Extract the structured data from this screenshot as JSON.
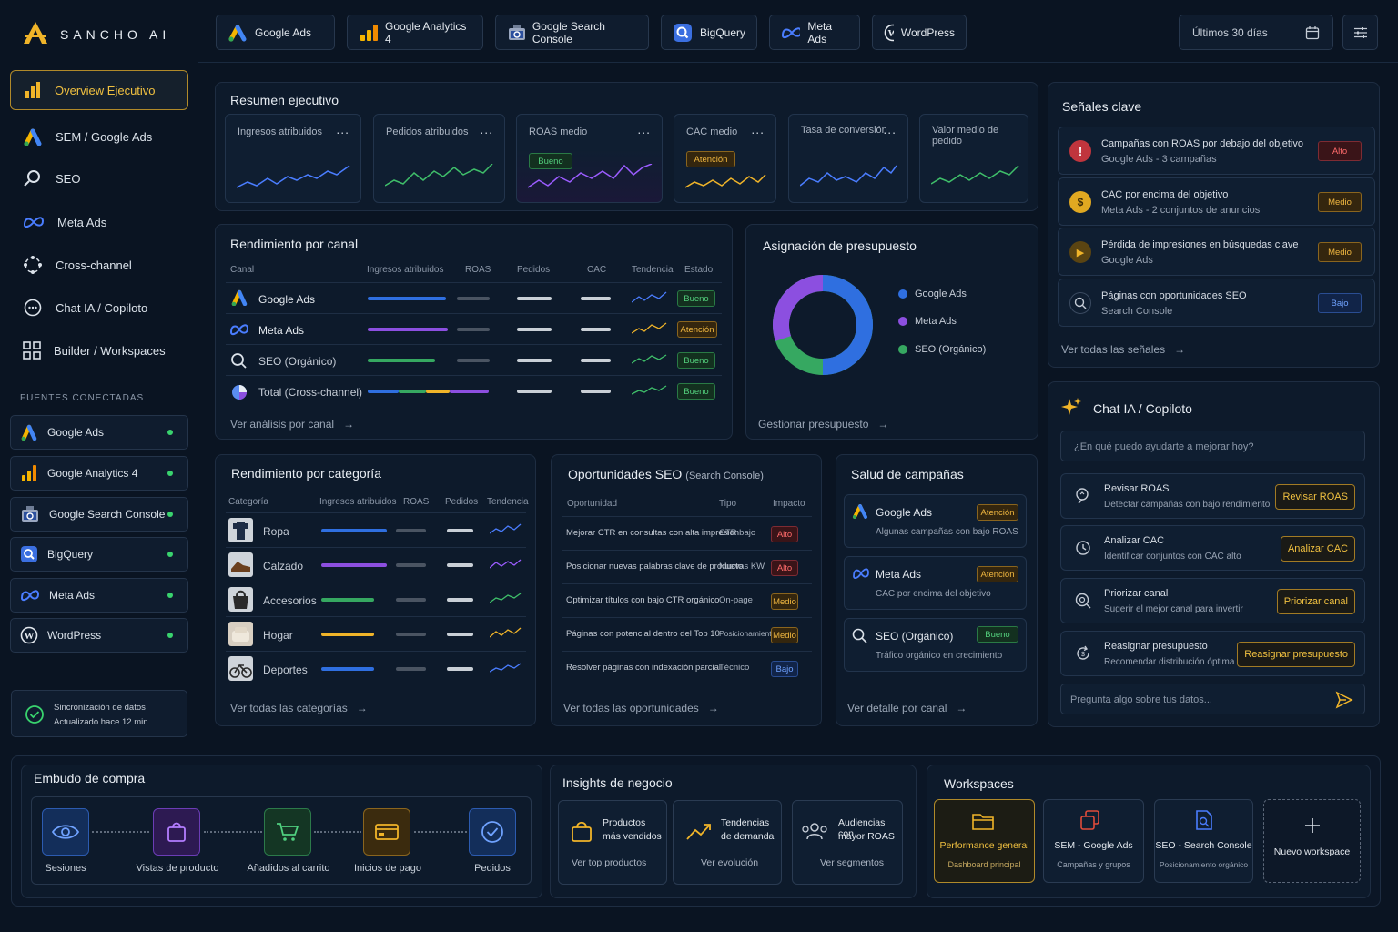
{
  "brand": {
    "name": "SANCHO AI"
  },
  "top_tabs": [
    "Google Ads",
    "Google Analytics 4",
    "Google Search Console",
    "BigQuery",
    "Meta Ads",
    "WordPress"
  ],
  "date_range": "Últimos 30 días",
  "sidebar": {
    "items": [
      "Overview Ejecutivo",
      "SEM / Google Ads",
      "SEO",
      "Meta Ads",
      "Cross-channel",
      "Chat IA / Copiloto",
      "Builder / Workspaces"
    ],
    "sources_title": "FUENTES CONECTADAS",
    "sources": [
      "Google Ads",
      "Google Analytics 4",
      "Google Search Console",
      "BigQuery",
      "Meta Ads",
      "WordPress"
    ],
    "sync": {
      "title": "Sincronización de datos",
      "subtitle": "Actualizado hace 12 min"
    }
  },
  "summary": {
    "title": "Resumen ejecutivo",
    "kpis": [
      {
        "label": "Ingresos atribuidos",
        "badge": ""
      },
      {
        "label": "Pedidos atribuidos",
        "badge": ""
      },
      {
        "label": "ROAS medio",
        "badge": "Bueno"
      },
      {
        "label": "CAC medio",
        "badge": "Atención"
      },
      {
        "label": "Tasa de conversión",
        "badge": ""
      },
      {
        "label": "Valor medio de pedido",
        "badge": ""
      }
    ],
    "more": "..."
  },
  "channel": {
    "title": "Rendimiento por canal",
    "headers": [
      "Canal",
      "Ingresos atribuidos",
      "ROAS",
      "Pedidos",
      "CAC",
      "Tendencia",
      "Estado"
    ],
    "rows": [
      {
        "name": "Google Ads",
        "status": "Bueno"
      },
      {
        "name": "Meta Ads",
        "status": "Atención"
      },
      {
        "name": "SEO (Orgánico)",
        "status": "Bueno"
      },
      {
        "name": "Total (Cross-channel)",
        "status": "Bueno"
      }
    ],
    "link": "Ver análisis por canal"
  },
  "budget": {
    "title": "Asignación de presupuesto",
    "legend": [
      "Google Ads",
      "Meta Ads",
      "SEO (Orgánico)"
    ],
    "shares": [
      0.5,
      0.27,
      0.23
    ],
    "colors": [
      "#2f6fe0",
      "#8c4fe0",
      "#36a861"
    ],
    "link": "Gestionar presupuesto"
  },
  "signals": {
    "title": "Señales clave",
    "items": [
      {
        "t1": "Campañas con ROAS por debajo del objetivo",
        "t2": "Google Ads - 3 campañas",
        "badge": "Alto"
      },
      {
        "t1": "CAC por encima del objetivo",
        "t2": "Meta Ads - 2 conjuntos de anuncios",
        "badge": "Medio"
      },
      {
        "t1": "Pérdida de impresiones en búsquedas clave",
        "t2": "Google Ads",
        "badge": "Medio"
      },
      {
        "t1": "Páginas con oportunidades SEO",
        "t2": "Search Console",
        "badge": "Bajo"
      }
    ],
    "link": "Ver todas las señales"
  },
  "chat": {
    "title": "Chat IA / Copiloto",
    "placeholder": "¿En qué puedo ayudarte a mejorar hoy?",
    "actions": [
      {
        "t1": "Revisar ROAS",
        "t2": "Detectar campañas con bajo rendimiento",
        "btn": "Revisar ROAS"
      },
      {
        "t1": "Analizar CAC",
        "t2": "Identificar conjuntos con CAC alto",
        "btn": "Analizar CAC"
      },
      {
        "t1": "Priorizar canal",
        "t2": "Sugerir el mejor canal para invertir",
        "btn": "Priorizar canal"
      },
      {
        "t1": "Reasignar presupuesto",
        "t2": "Recomendar distribución óptima",
        "btn": "Reasignar presupuesto"
      }
    ],
    "input_placeholder": "Pregunta algo sobre tus datos..."
  },
  "category": {
    "title": "Rendimiento por categoría",
    "headers": [
      "Categoría",
      "Ingresos atribuidos",
      "ROAS",
      "Pedidos",
      "Tendencia"
    ],
    "rows": [
      "Ropa",
      "Calzado",
      "Accesorios",
      "Hogar",
      "Deportes"
    ],
    "link": "Ver todas las categorías"
  },
  "seo": {
    "title": "Oportunidades SEO",
    "title_suffix": "(Search Console)",
    "headers": [
      "Oportunidad",
      "Tipo",
      "Impacto"
    ],
    "rows": [
      {
        "t": "Mejorar CTR en consultas con alta impresión",
        "k": "CTR bajo",
        "b": "Alto"
      },
      {
        "t": "Posicionar nuevas palabras clave de producto",
        "k": "Nuevas KW",
        "b": "Alto"
      },
      {
        "t": "Optimizar títulos con bajo CTR orgánico",
        "k": "On-page",
        "b": "Medio"
      },
      {
        "t": "Páginas con potencial dentro del Top 10",
        "k": "Posicionamiento",
        "b": "Medio"
      },
      {
        "t": "Resolver páginas con indexación parcial",
        "k": "Técnico",
        "b": "Bajo"
      }
    ],
    "link": "Ver todas las oportunidades"
  },
  "health": {
    "title": "Salud de campañas",
    "items": [
      {
        "name": "Google Ads",
        "badge": "Atención",
        "desc": "Algunas campañas con bajo ROAS"
      },
      {
        "name": "Meta Ads",
        "badge": "Atención",
        "desc": "CAC por encima del objetivo"
      },
      {
        "name": "SEO (Orgánico)",
        "badge": "Bueno",
        "desc": "Tráfico orgánico en crecimiento"
      }
    ],
    "link": "Ver detalle por canal"
  },
  "funnel": {
    "title": "Embudo de compra",
    "steps": [
      "Sesiones",
      "Vistas de producto",
      "Añadidos al carrito",
      "Inicios de pago",
      "Pedidos"
    ]
  },
  "insights": {
    "title": "Insights de negocio",
    "cards": [
      {
        "l1": "Productos",
        "l2": "más vendidos",
        "link": "Ver top productos"
      },
      {
        "l1": "Tendencias",
        "l2": "de demanda",
        "link": "Ver evolución"
      },
      {
        "l1": "Audiencias con",
        "l2": "mayor ROAS",
        "link": "Ver segmentos"
      }
    ]
  },
  "workspaces": {
    "title": "Workspaces",
    "cards": [
      {
        "t1": "Performance general",
        "t2": "Dashboard principal"
      },
      {
        "t1": "SEM - Google Ads",
        "t2": "Campañas y grupos"
      },
      {
        "t1": "SEO - Search Console",
        "t2": "Posicionamiento orgánico"
      },
      {
        "t1": "Nuevo workspace",
        "t2": ""
      }
    ]
  },
  "colors": {
    "accent": "#f0b429",
    "bg": "#0a1422",
    "blue": "#2f6fe0",
    "purple": "#8c4fe0",
    "green": "#36a861"
  }
}
